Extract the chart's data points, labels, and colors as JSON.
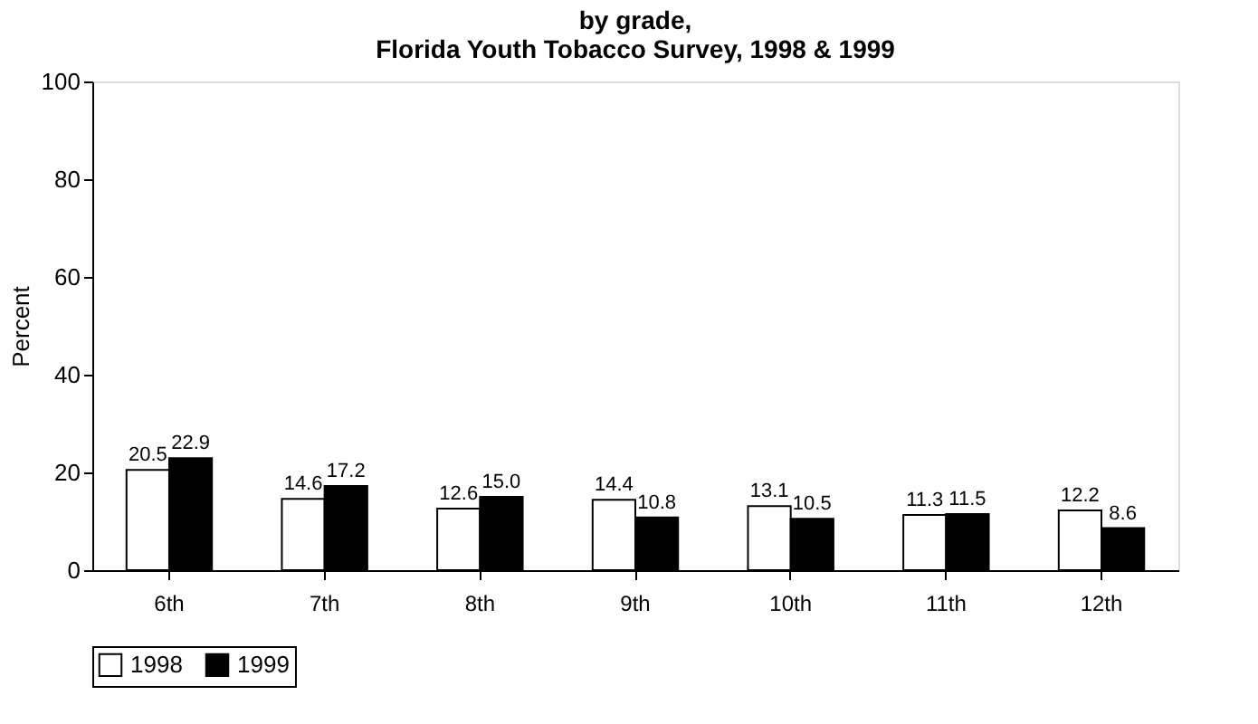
{
  "chart_data": {
    "type": "bar",
    "title": [
      "by grade,",
      "Florida Youth Tobacco Survey, 1998 & 1999"
    ],
    "ylabel": "Percent",
    "categories": [
      "6th",
      "7th",
      "8th",
      "9th",
      "10th",
      "11th",
      "12th"
    ],
    "series": [
      {
        "name": "1998",
        "color": "#ffffff",
        "values": [
          20.5,
          14.6,
          12.6,
          14.4,
          13.1,
          11.3,
          12.2
        ]
      },
      {
        "name": "1999",
        "color": "#000000",
        "values": [
          22.9,
          17.2,
          15.0,
          10.8,
          10.5,
          11.5,
          8.6
        ]
      }
    ],
    "ylim": [
      0,
      100
    ],
    "yticks": [
      0,
      20,
      40,
      60,
      80,
      100
    ],
    "grid": false,
    "legend": "bottom",
    "value_labels": [
      [
        "20.5",
        "14.6",
        "12.6",
        "14.4",
        "13.1",
        "11.3",
        "12.2"
      ],
      [
        "22.9",
        "17.2",
        "15.0",
        "10.8",
        "10.5",
        "11.5",
        "8.6"
      ]
    ]
  }
}
